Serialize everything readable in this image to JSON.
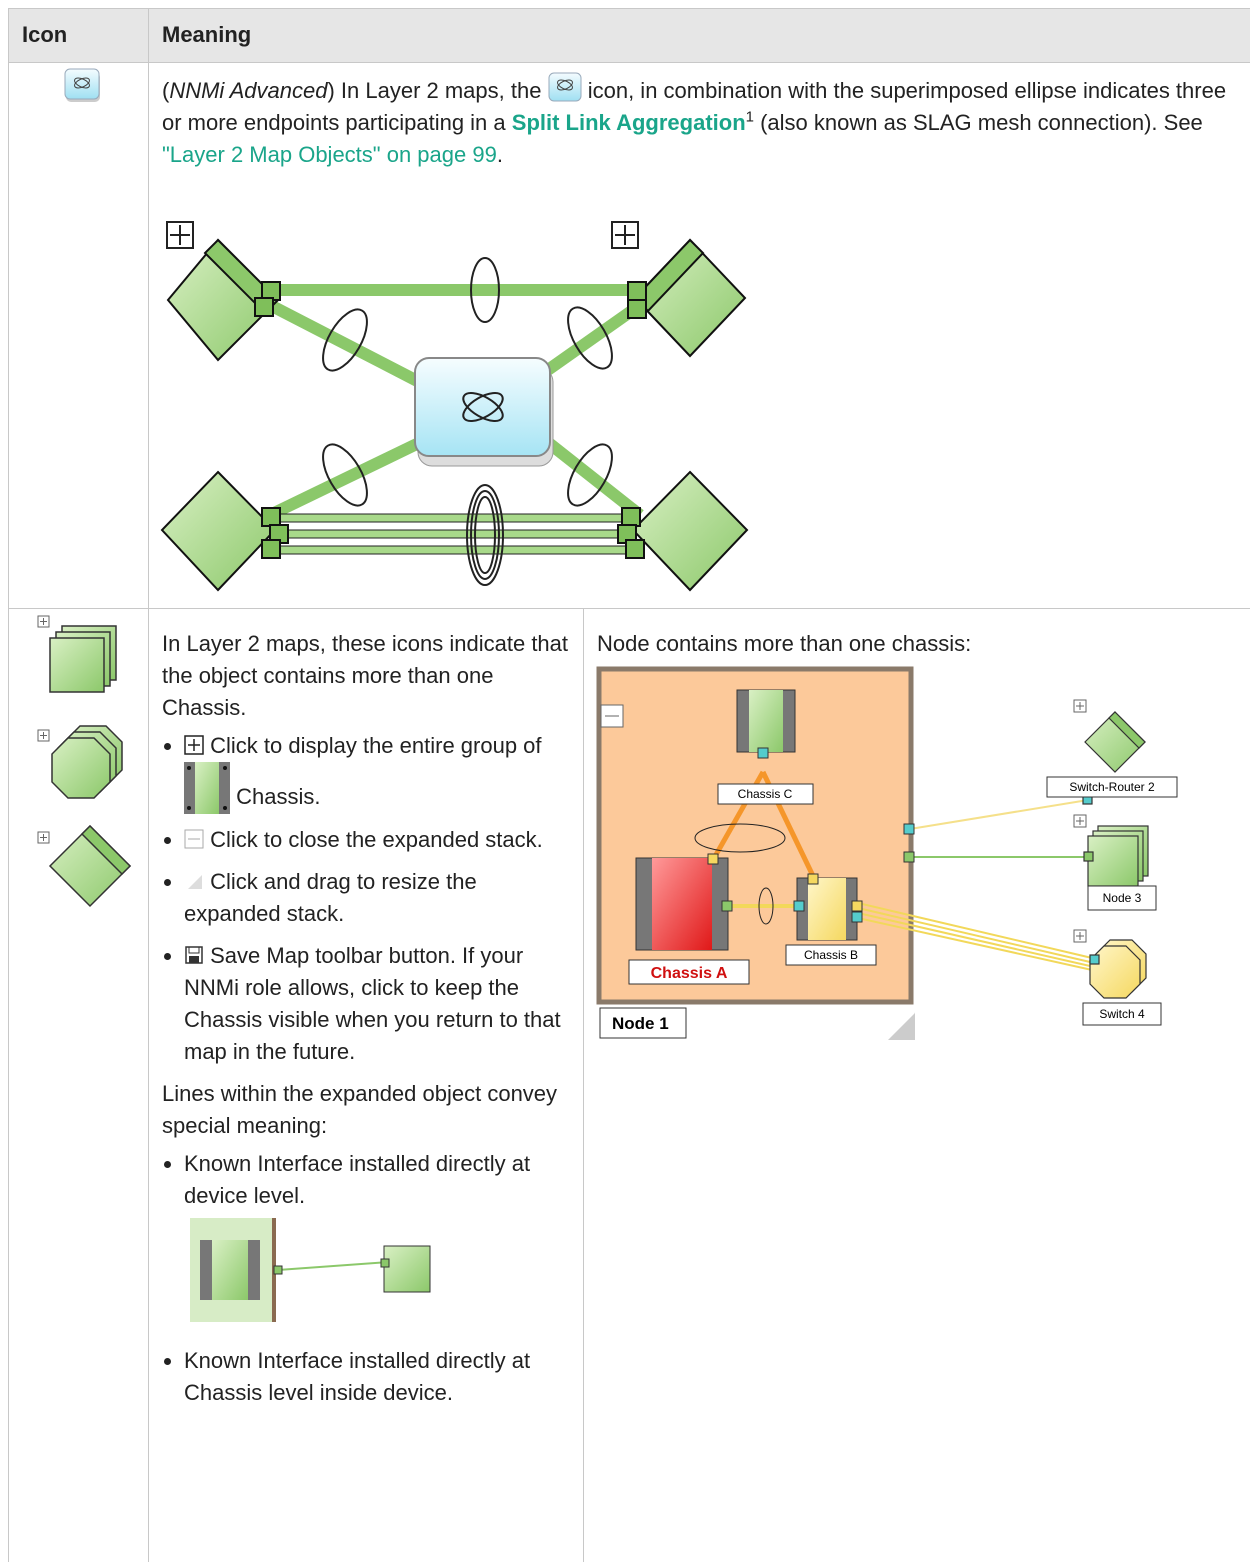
{
  "table": {
    "header": {
      "icon": "Icon",
      "meaning": "Meaning"
    },
    "rows": [
      {
        "meaning": {
          "paren_open": "(",
          "edition": "NNMi Advanced",
          "text_before_icon": ") In Layer 2 maps, the",
          "text_after_icon": "icon, in combination with the superimposed ellipse indicates three or more endpoints participating in a",
          "term": "Split Link Aggregation",
          "footnote": "1",
          "text_after_term": "(also known as SLAG mesh connection). See",
          "link": "\"Layer 2 Map Objects\" on page 99",
          "end": "."
        }
      },
      {
        "meaning": {
          "intro": "In Layer 2 maps, these icons indicate that the object contains more than one Chassis.",
          "bullets": [
            {
              "text": "Click to display the entire group of",
              "text_after_icon": "Chassis."
            },
            {
              "text": "Click to close the expanded stack."
            },
            {
              "text": "Click and drag to resize the expanded stack."
            },
            {
              "text": "Save Map toolbar button. If your NNMi role allows, click to keep the Chassis visible when you return to that map in the future."
            }
          ],
          "lines_intro": "Lines within the expanded object convey special meaning:",
          "line_bullets": [
            {
              "text": "Known Interface installed directly at device level."
            },
            {
              "text": "Known Interface installed directly at Chassis level inside device."
            }
          ]
        },
        "example": {
          "caption": "Node contains more than one chassis:",
          "labels": {
            "chassis_c": "Chassis C",
            "chassis_a": "Chassis A",
            "chassis_b": "Chassis B",
            "node_1": "Node 1",
            "switch_router_2": "Switch-Router 2",
            "node_3": "Node 3",
            "switch_4": "Switch 4"
          }
        }
      }
    ]
  }
}
